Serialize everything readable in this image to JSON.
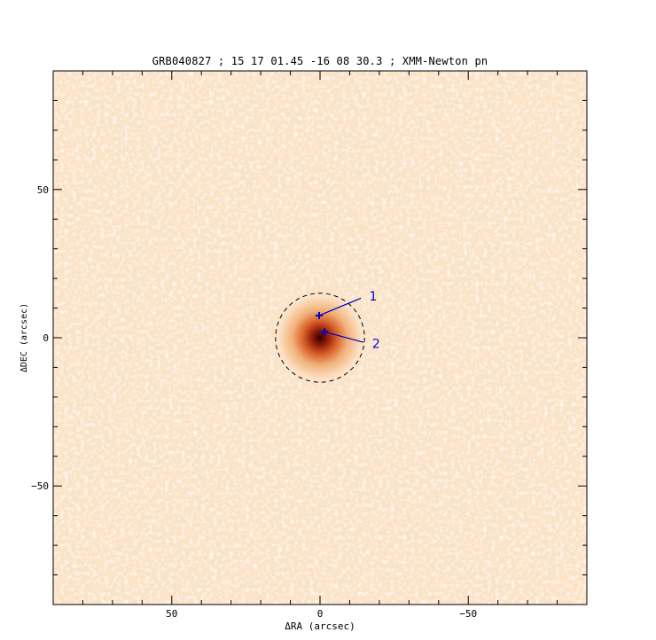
{
  "chart_data": {
    "type": "heatmap",
    "title": "GRB040827 ; 15 17 01.45  -16 08 30.3 ; XMM-Newton pn",
    "xlabel": "ΔRA (arcsec)",
    "ylabel": "ΔDEC (arcsec)",
    "xlim": [
      90,
      -90
    ],
    "ylim": [
      -90,
      90
    ],
    "x_ticks": [
      50,
      0,
      -50
    ],
    "y_ticks": [
      50,
      0,
      -50
    ],
    "x_tick_labels": [
      "50",
      "0",
      "−50"
    ],
    "y_tick_labels": [
      "50",
      "0",
      "−50"
    ],
    "minor_tick_step": 10,
    "colormap": [
      "#fffaf3",
      "#fbe3c8",
      "#f2b27a",
      "#d9622b",
      "#8f1a08",
      "#2a0000"
    ],
    "source": {
      "x": 0,
      "y": 0,
      "sigma_arcsec": 5
    },
    "extraction_circle": {
      "x": 0,
      "y": 0,
      "radius_arcsec": 15,
      "style": "dashed"
    },
    "markers": [
      {
        "label": "1",
        "x": 0.3,
        "y": 7.5,
        "label_x": -16,
        "label_y": 14,
        "color": "#0000cc"
      },
      {
        "label": "2",
        "x": -1.5,
        "y": 2.0,
        "label_x": -17,
        "label_y": -2,
        "color": "#0000cc"
      }
    ]
  }
}
